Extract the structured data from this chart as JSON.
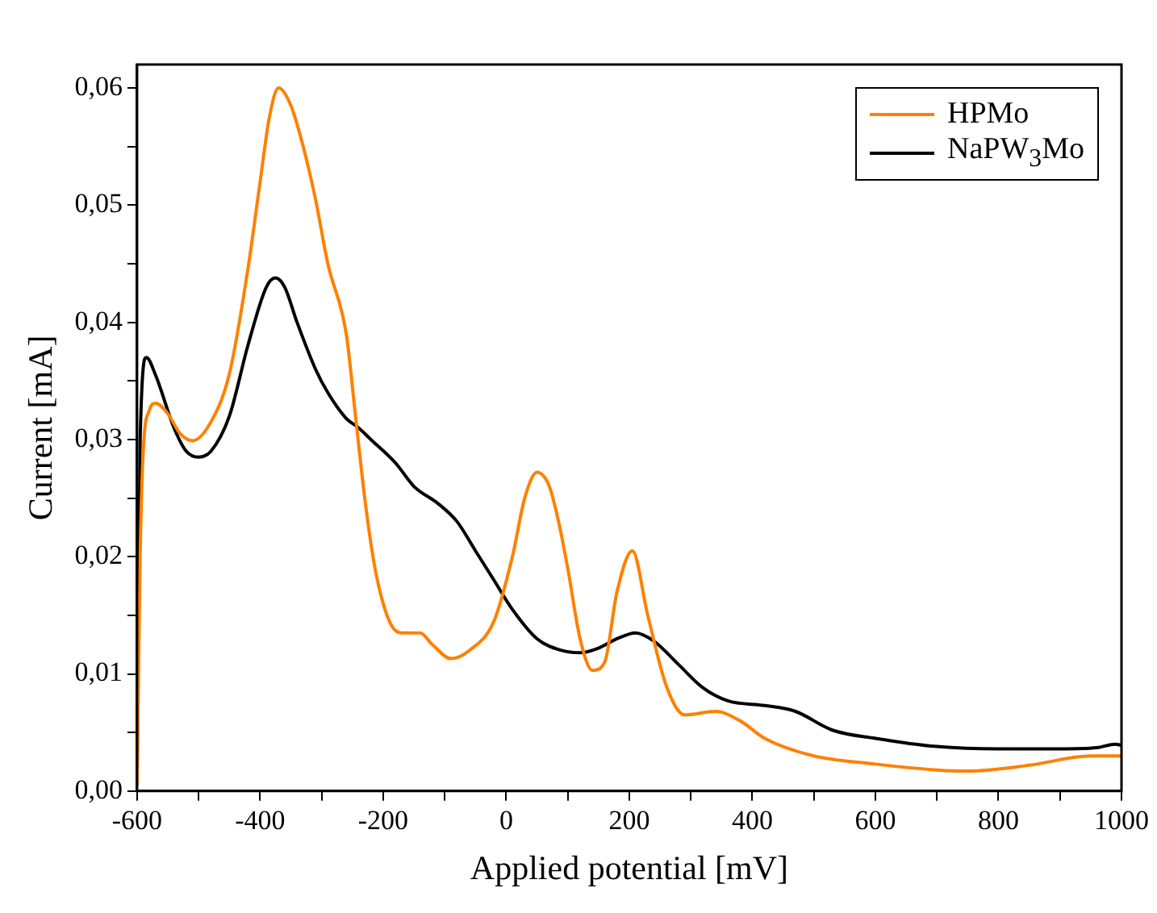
{
  "chart_data": {
    "type": "line",
    "xlabel": "Applied potential [mV]",
    "ylabel": "Current [mA]",
    "xlim": [
      -600,
      1000
    ],
    "xticks": [
      -600,
      {
        "value": -500,
        "label": null
      },
      -400,
      {
        "value": -300,
        "label": null
      },
      -200,
      {
        "value": -100,
        "label": null
      },
      0,
      {
        "value": 100,
        "label": null
      },
      200,
      {
        "value": 300,
        "label": null
      },
      400,
      {
        "value": 500,
        "label": null
      },
      600,
      {
        "value": 700,
        "label": null
      },
      800,
      {
        "value": 900,
        "label": null
      },
      1000
    ],
    "ylim": [
      0,
      0.062
    ],
    "yticks": [
      {
        "value": 0,
        "label": "0,00"
      },
      {
        "value": 0.005,
        "label": null
      },
      {
        "value": 0.01,
        "label": "0,01"
      },
      {
        "value": 0.015,
        "label": null
      },
      {
        "value": 0.02,
        "label": "0,02"
      },
      {
        "value": 0.025,
        "label": null
      },
      {
        "value": 0.03,
        "label": "0,03"
      },
      {
        "value": 0.035,
        "label": null
      },
      {
        "value": 0.04,
        "label": "0,04"
      },
      {
        "value": 0.045,
        "label": null
      },
      {
        "value": 0.05,
        "label": "0,05"
      },
      {
        "value": 0.055,
        "label": null
      },
      {
        "value": 0.06,
        "label": "0,06"
      }
    ],
    "grid": false,
    "legend": "top right",
    "marker": "none",
    "line_style": "solid",
    "series": [
      {
        "name": "HPMo",
        "color": "#ff8000",
        "x": [
          -600,
          -595,
          -590,
          -580,
          -570,
          -550,
          -530,
          -510,
          -480,
          -450,
          -420,
          -400,
          -385,
          -370,
          -350,
          -330,
          -310,
          -290,
          -260,
          -245,
          -230,
          -215,
          -200,
          -185,
          -170,
          -140,
          -120,
          -90,
          -60,
          -20,
          10,
          30,
          50,
          70,
          85,
          100,
          120,
          140,
          160,
          180,
          205,
          230,
          260,
          290,
          340,
          380,
          420,
          500,
          600,
          700,
          750,
          850,
          950,
          1000
        ],
        "values": [
          0.0005,
          0.02,
          0.029,
          0.0325,
          0.0331,
          0.0322,
          0.0305,
          0.0299,
          0.0315,
          0.0356,
          0.0445,
          0.052,
          0.0575,
          0.06,
          0.0585,
          0.055,
          0.0505,
          0.045,
          0.039,
          0.032,
          0.025,
          0.0195,
          0.016,
          0.014,
          0.0135,
          0.0135,
          0.0125,
          0.0113,
          0.012,
          0.0145,
          0.02,
          0.025,
          0.0272,
          0.026,
          0.023,
          0.019,
          0.013,
          0.0103,
          0.011,
          0.017,
          0.0205,
          0.015,
          0.009,
          0.0065,
          0.0068,
          0.006,
          0.0045,
          0.003,
          0.0023,
          0.0018,
          0.0017,
          0.0022,
          0.003,
          0.003
        ]
      },
      {
        "name": "NaPW$_{3}$Mo",
        "color": "#000000",
        "x": [
          -600,
          -595,
          -585,
          -570,
          -540,
          -520,
          -500,
          -480,
          -450,
          -420,
          -390,
          -375,
          -360,
          -340,
          -310,
          -290,
          -260,
          -240,
          -220,
          -180,
          -150,
          -110,
          -80,
          -50,
          -20,
          10,
          50,
          90,
          120,
          150,
          180,
          210,
          240,
          280,
          320,
          360,
          420,
          470,
          530,
          600,
          700,
          800,
          900,
          960,
          990,
          1000
        ],
        "values": [
          0.0005,
          0.03,
          0.037,
          0.0355,
          0.031,
          0.029,
          0.0285,
          0.029,
          0.032,
          0.038,
          0.043,
          0.0438,
          0.043,
          0.04,
          0.036,
          0.034,
          0.0318,
          0.031,
          0.03,
          0.028,
          0.026,
          0.0245,
          0.023,
          0.0205,
          0.018,
          0.0155,
          0.013,
          0.012,
          0.0118,
          0.0122,
          0.013,
          0.0135,
          0.0128,
          0.0108,
          0.0088,
          0.0077,
          0.0073,
          0.0068,
          0.0052,
          0.0045,
          0.0038,
          0.0036,
          0.0036,
          0.0037,
          0.004,
          0.0039
        ]
      }
    ]
  }
}
